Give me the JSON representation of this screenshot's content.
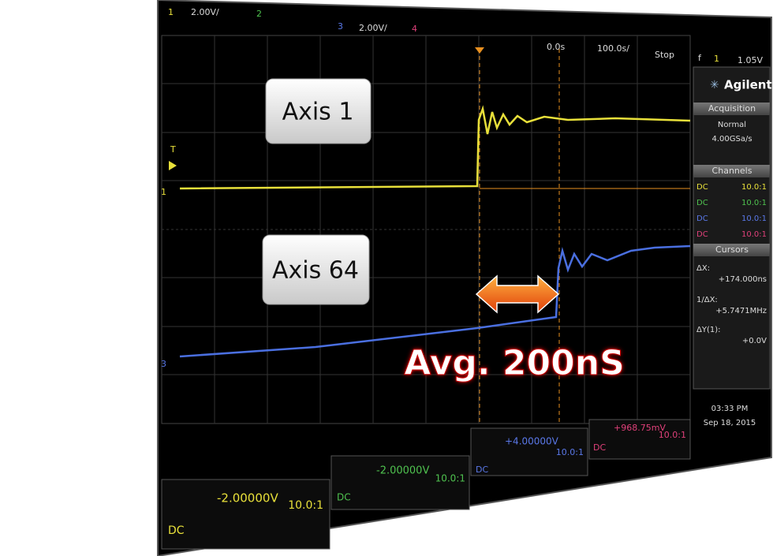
{
  "top_bar": {
    "ch1": "1",
    "ch1_scale": "2.00V/",
    "ch2": "2",
    "ch3": "3",
    "ch3_scale": "2.00V/",
    "ch4": "4"
  },
  "status": {
    "time_offset": "0.0s",
    "time_scale": "100.0s/",
    "run_state": "Stop",
    "trigger_icon": "f",
    "trigger_channel": "1",
    "trigger_level": "1.05V"
  },
  "panel": {
    "brand": "Agilent",
    "acquisition": {
      "title": "Acquisition",
      "mode": "Normal",
      "rate": "4.00GSa/s"
    },
    "channels": {
      "title": "Channels",
      "rows": [
        [
          "DC",
          "10.0:1"
        ],
        [
          "DC",
          "10.0:1"
        ],
        [
          "DC",
          "10.0:1"
        ],
        [
          "DC",
          "10.0:1"
        ]
      ]
    },
    "cursors": {
      "title": "Cursors",
      "items": [
        {
          "label": "ΔX:",
          "value": "+174.000ns"
        },
        {
          "label": "1/ΔX:",
          "value": "+5.7471MHz"
        },
        {
          "label": "ΔY(1):",
          "value": "+0.0V"
        }
      ]
    },
    "time": "03:33 PM",
    "date": "Sep 18, 2015"
  },
  "channel_boxes": [
    {
      "offset": "-2.00000V",
      "probe": "10.0:1",
      "coupling": "DC"
    },
    {
      "offset": "-2.00000V",
      "probe": "10.0:1",
      "coupling": "DC"
    },
    {
      "offset": "+4.00000V",
      "probe": "10.0:1",
      "coupling": "DC"
    },
    {
      "offset": "+968.75mV",
      "probe": "10.0:1",
      "coupling": "DC"
    }
  ],
  "markers": {
    "trigger": "T",
    "ch1": "1",
    "ch3": "3"
  },
  "overlays": {
    "axis1": "Axis 1",
    "axis64": "Axis 64",
    "delay": "Avg. 200nS"
  }
}
